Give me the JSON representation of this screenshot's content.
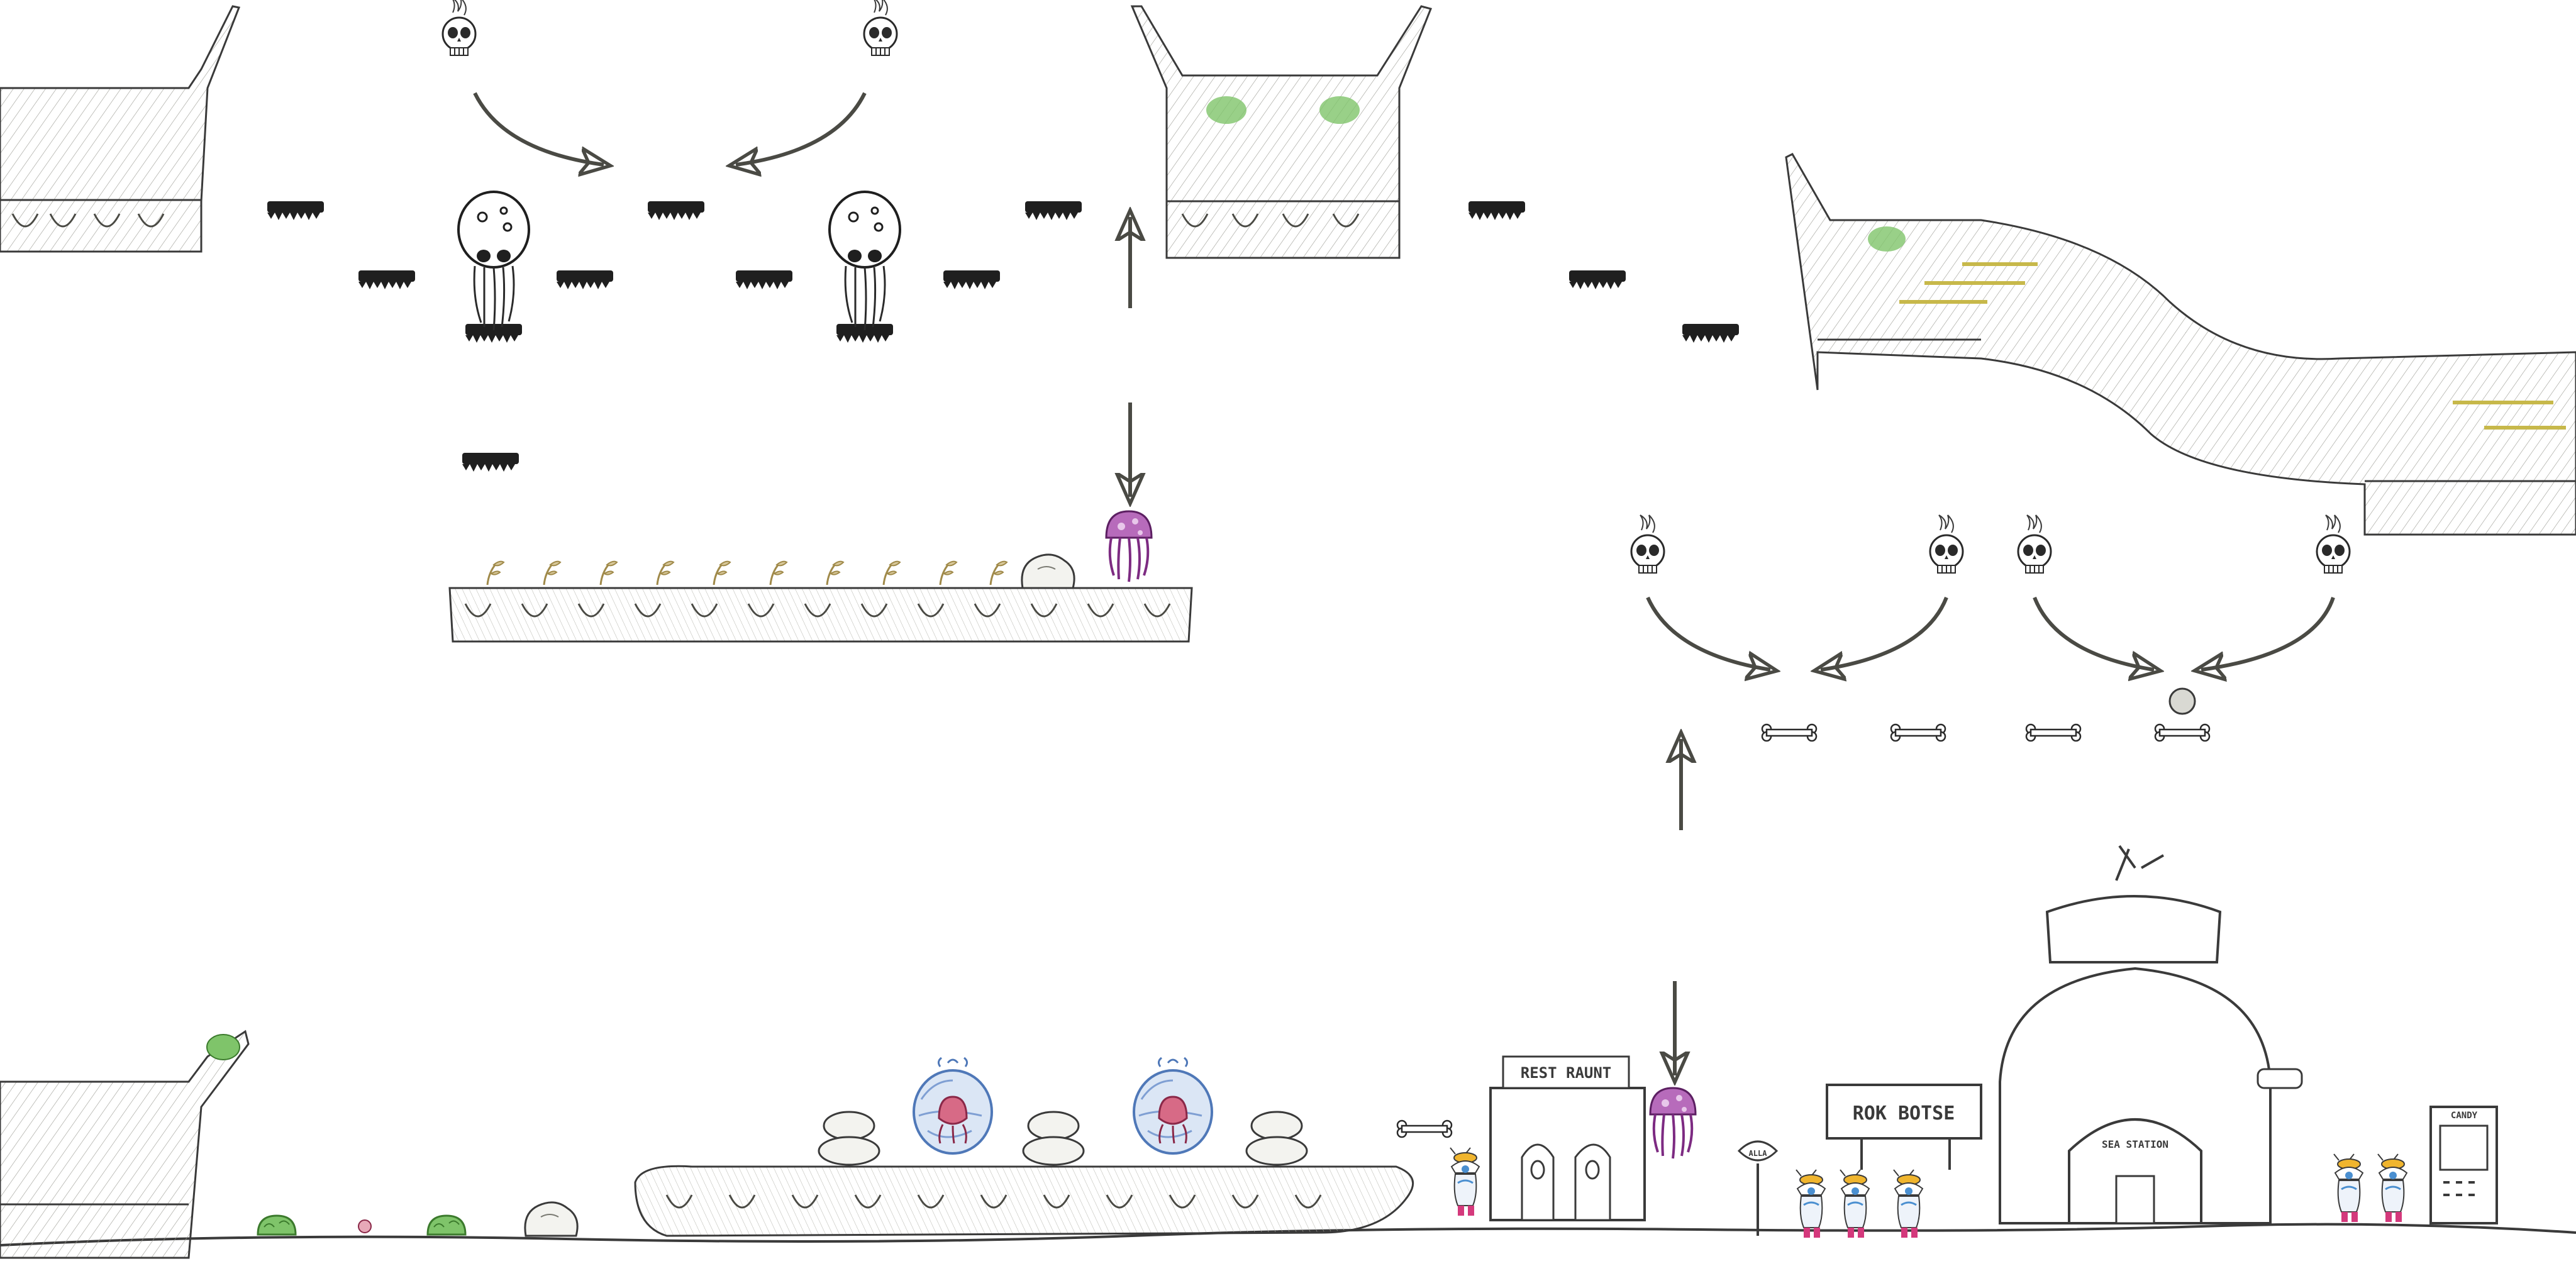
{
  "scene": {
    "type": "hand-drawn platformer level sketch",
    "style": "pencil sketch on white",
    "background_color": "#ffffff",
    "ink_color": "#3a3a3a",
    "rock_fill": "#e6e6e0",
    "moss_green": "#5da04c",
    "jelly_purple": "#9b3fa0",
    "bubble_blue": "#6f93c9",
    "coral_pink": "#d4397c",
    "arrow_color": "#4a4a44"
  },
  "signs": {
    "restaurant": "REST RAUNT",
    "store": "ROK BOTSE",
    "dome": "SEA STATION",
    "small_post": "ALLA",
    "vending": "CANDY"
  },
  "icons": [
    "skull-icon",
    "arrow-icon",
    "jellyfish-icon",
    "skull-ghost-icon",
    "bone-icon",
    "bubble-enemy-icon",
    "moss-creature-icon",
    "sprout-icon",
    "diver-npc-icon",
    "boulder-icon"
  ]
}
